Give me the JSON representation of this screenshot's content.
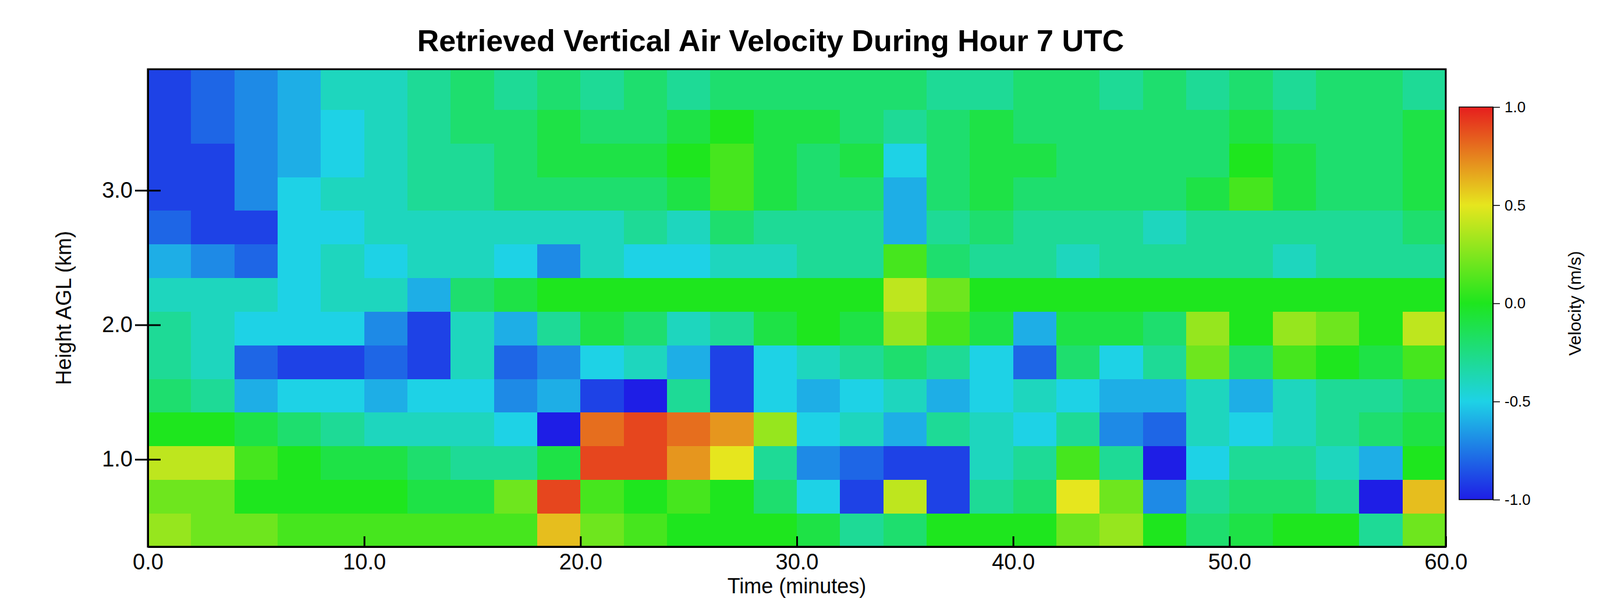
{
  "chart_data": {
    "type": "heatmap",
    "title": "Retrieved Vertical Air Velocity During Hour 7 UTC",
    "x_label": "Time (minutes)",
    "y_label": "Height AGL (km)",
    "xlim": [
      0,
      60
    ],
    "ylim": [
      0.35,
      3.9
    ],
    "xticks": [
      {
        "value": 0,
        "label": "0.0"
      },
      {
        "value": 10,
        "label": "10.0"
      },
      {
        "value": 20,
        "label": "20.0"
      },
      {
        "value": 30,
        "label": "30.0"
      },
      {
        "value": 40,
        "label": "40.0"
      },
      {
        "value": 50,
        "label": "50.0"
      },
      {
        "value": 60,
        "label": "60.0"
      }
    ],
    "yticks": [
      {
        "value": 1,
        "label": "1.0"
      },
      {
        "value": 2,
        "label": "2.0"
      },
      {
        "value": 3,
        "label": "3.0"
      }
    ],
    "x_edges": [
      0,
      2,
      4,
      6,
      8,
      10,
      12,
      14,
      16,
      18,
      20,
      22,
      24,
      26,
      28,
      30,
      32,
      34,
      36,
      38,
      40,
      42,
      44,
      46,
      48,
      50,
      52,
      54,
      56,
      58,
      60
    ],
    "y_edges": [
      0.35,
      0.6,
      0.85,
      1.1,
      1.35,
      1.6,
      1.85,
      2.1,
      2.35,
      2.6,
      2.85,
      3.1,
      3.35,
      3.6,
      3.9
    ],
    "z": [
      [
        0.3,
        0.2,
        0.2,
        0.1,
        0.1,
        0.1,
        0.1,
        0.1,
        0.1,
        0.6,
        0.2,
        0.1,
        0.0,
        0.0,
        0.0,
        -0.1,
        -0.3,
        -0.2,
        0.0,
        0.0,
        0.0,
        0.2,
        0.3,
        0.0,
        -0.2,
        -0.1,
        0.0,
        0.0,
        -0.3,
        0.2
      ],
      [
        0.2,
        0.2,
        0.0,
        0.0,
        0.0,
        0.0,
        -0.1,
        -0.1,
        0.2,
        0.9,
        0.1,
        0.0,
        0.1,
        0.0,
        -0.2,
        -0.5,
        -0.9,
        0.4,
        -0.9,
        -0.3,
        -0.2,
        0.5,
        0.2,
        -0.7,
        -0.3,
        -0.2,
        -0.2,
        -0.3,
        -1.0,
        0.6
      ],
      [
        0.4,
        0.4,
        0.1,
        0.0,
        -0.1,
        -0.1,
        -0.2,
        -0.3,
        -0.3,
        -0.1,
        0.9,
        0.9,
        0.7,
        0.5,
        -0.3,
        -0.7,
        -0.8,
        -0.9,
        -0.9,
        -0.4,
        -0.3,
        0.1,
        -0.3,
        -1.0,
        -0.5,
        -0.3,
        -0.3,
        -0.4,
        -0.6,
        0.0
      ],
      [
        0.0,
        0.0,
        -0.1,
        -0.2,
        -0.3,
        -0.4,
        -0.4,
        -0.4,
        -0.5,
        -1.0,
        0.8,
        0.9,
        0.8,
        0.7,
        0.3,
        -0.5,
        -0.4,
        -0.6,
        -0.3,
        -0.4,
        -0.5,
        -0.3,
        -0.7,
        -0.8,
        -0.4,
        -0.5,
        -0.4,
        -0.3,
        -0.2,
        -0.1
      ],
      [
        -0.2,
        -0.3,
        -0.6,
        -0.5,
        -0.5,
        -0.6,
        -0.5,
        -0.5,
        -0.7,
        -0.6,
        -0.9,
        -1.0,
        -0.3,
        -0.9,
        -0.5,
        -0.6,
        -0.5,
        -0.4,
        -0.6,
        -0.5,
        -0.4,
        -0.5,
        -0.6,
        -0.6,
        -0.4,
        -0.6,
        -0.4,
        -0.3,
        -0.3,
        -0.2
      ],
      [
        -0.3,
        -0.4,
        -0.8,
        -0.9,
        -0.9,
        -0.8,
        -0.9,
        -0.4,
        -0.8,
        -0.7,
        -0.5,
        -0.4,
        -0.6,
        -0.9,
        -0.5,
        -0.4,
        -0.3,
        -0.2,
        -0.3,
        -0.5,
        -0.8,
        -0.2,
        -0.5,
        -0.3,
        0.2,
        -0.2,
        0.1,
        0.0,
        -0.1,
        0.1
      ],
      [
        -0.3,
        -0.4,
        -0.5,
        -0.5,
        -0.5,
        -0.7,
        -0.9,
        -0.4,
        -0.6,
        -0.3,
        -0.1,
        -0.2,
        -0.4,
        -0.3,
        -0.1,
        0.0,
        -0.1,
        0.3,
        0.1,
        -0.1,
        -0.6,
        -0.1,
        -0.1,
        -0.2,
        0.3,
        0.0,
        0.3,
        0.2,
        0.0,
        0.4
      ],
      [
        -0.4,
        -0.4,
        -0.4,
        -0.5,
        -0.4,
        -0.4,
        -0.6,
        -0.2,
        -0.1,
        0.0,
        0.0,
        0.0,
        0.0,
        0.0,
        0.0,
        0.0,
        0.0,
        0.4,
        0.2,
        0.0,
        0.0,
        0.0,
        0.0,
        0.0,
        0.0,
        0.0,
        0.0,
        0.0,
        0.0,
        0.0
      ],
      [
        -0.6,
        -0.7,
        -0.8,
        -0.5,
        -0.4,
        -0.5,
        -0.4,
        -0.4,
        -0.5,
        -0.7,
        -0.4,
        -0.5,
        -0.5,
        -0.4,
        -0.4,
        -0.3,
        -0.3,
        0.1,
        -0.2,
        -0.3,
        -0.3,
        -0.4,
        -0.3,
        -0.3,
        -0.3,
        -0.3,
        -0.4,
        -0.3,
        -0.3,
        -0.3
      ],
      [
        -0.8,
        -0.9,
        -0.9,
        -0.5,
        -0.5,
        -0.4,
        -0.4,
        -0.4,
        -0.4,
        -0.4,
        -0.4,
        -0.3,
        -0.4,
        -0.2,
        -0.3,
        -0.3,
        -0.3,
        -0.6,
        -0.3,
        -0.2,
        -0.3,
        -0.3,
        -0.3,
        -0.4,
        -0.3,
        -0.3,
        -0.3,
        -0.3,
        -0.3,
        -0.2
      ],
      [
        -0.9,
        -0.9,
        -0.7,
        -0.5,
        -0.4,
        -0.4,
        -0.3,
        -0.3,
        -0.2,
        -0.2,
        -0.2,
        -0.2,
        -0.1,
        0.1,
        -0.1,
        -0.2,
        -0.2,
        -0.6,
        -0.2,
        -0.1,
        -0.2,
        -0.2,
        -0.2,
        -0.2,
        -0.1,
        0.1,
        -0.1,
        -0.2,
        -0.2,
        -0.1
      ],
      [
        -0.9,
        -0.9,
        -0.7,
        -0.6,
        -0.5,
        -0.4,
        -0.3,
        -0.3,
        -0.2,
        -0.1,
        -0.1,
        -0.1,
        0.0,
        0.1,
        -0.1,
        -0.2,
        -0.1,
        -0.5,
        -0.2,
        -0.1,
        -0.1,
        -0.2,
        -0.2,
        -0.2,
        -0.2,
        0.0,
        -0.1,
        -0.2,
        -0.2,
        -0.1
      ],
      [
        -0.9,
        -0.8,
        -0.7,
        -0.6,
        -0.5,
        -0.4,
        -0.3,
        -0.2,
        -0.2,
        -0.1,
        -0.2,
        -0.2,
        -0.1,
        0.0,
        -0.1,
        -0.1,
        -0.2,
        -0.3,
        -0.2,
        -0.1,
        -0.2,
        -0.2,
        -0.2,
        -0.2,
        -0.2,
        -0.1,
        -0.2,
        -0.2,
        -0.2,
        -0.1
      ],
      [
        -0.9,
        -0.8,
        -0.7,
        -0.6,
        -0.4,
        -0.4,
        -0.3,
        -0.2,
        -0.3,
        -0.2,
        -0.3,
        -0.2,
        -0.3,
        -0.2,
        -0.2,
        -0.2,
        -0.2,
        -0.2,
        -0.3,
        -0.3,
        -0.2,
        -0.2,
        -0.3,
        -0.2,
        -0.3,
        -0.2,
        -0.3,
        -0.2,
        -0.2,
        -0.3
      ]
    ],
    "colorbar": {
      "label": "Velocity (m/s)",
      "range": [
        -1,
        1
      ],
      "ticks": [
        {
          "value": -1,
          "label": "-1.0"
        },
        {
          "value": -0.5,
          "label": "-0.5"
        },
        {
          "value": 0,
          "label": "0.0"
        },
        {
          "value": 0.5,
          "label": "0.5"
        },
        {
          "value": 1,
          "label": "1.0"
        }
      ],
      "colors": [
        "#1e1ee6",
        "#1ed2e6",
        "#1ee61e",
        "#e6e61e",
        "#e61e1e"
      ]
    }
  }
}
